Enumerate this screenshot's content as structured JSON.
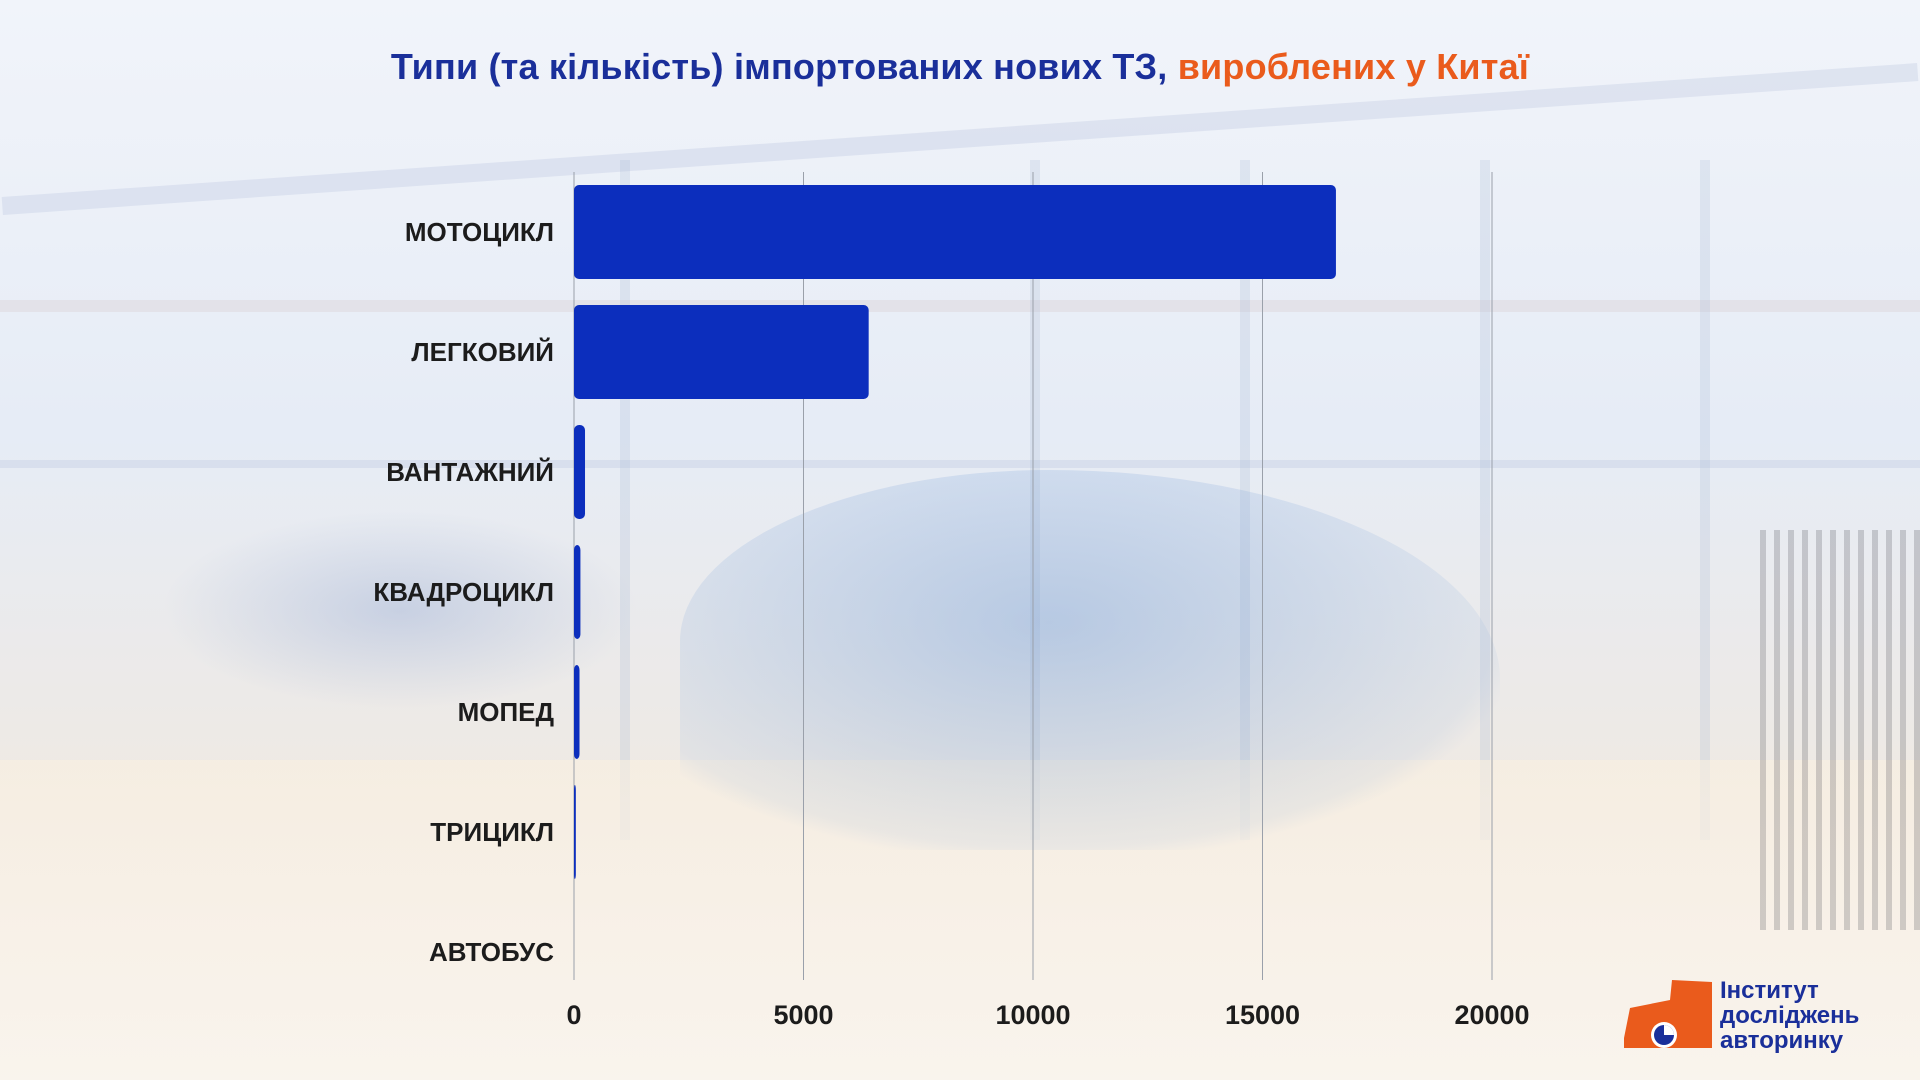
{
  "title": {
    "main": "Типи (та кількість) імпортованих нових ТЗ,",
    "accent": "вироблених у Китаї"
  },
  "colors": {
    "bar": "#0c2ebd",
    "title": "#1a2f9a",
    "accent": "#ea5b1c",
    "grid": "#9aa0aa",
    "logo_orange": "#ea5b1c"
  },
  "chart_data": {
    "type": "bar",
    "orientation": "horizontal",
    "title": "Типи (та кількість) імпортованих нових ТЗ, вироблених у Китаї",
    "categories": [
      "МОТОЦИКЛ",
      "ЛЕГКОВИЙ",
      "ВАНТАЖНИЙ",
      "КВАДРОЦИКЛ",
      "МОПЕД",
      "ТРИЦИКЛ",
      "АВТОБУС"
    ],
    "values": [
      16600,
      6420,
      240,
      140,
      120,
      40,
      5
    ],
    "xlim": [
      0,
      20000
    ],
    "ticks": [
      0,
      5000,
      10000,
      15000,
      20000
    ],
    "tick_labels": [
      "0",
      "5000",
      "10000",
      "15000",
      "20000"
    ],
    "grid": "vertical",
    "legend": "none",
    "xlabel": "",
    "ylabel": ""
  },
  "logo": {
    "icon": "institute-logo-icon",
    "lines": [
      "Інститут",
      "досліджень",
      "авторинку"
    ]
  }
}
